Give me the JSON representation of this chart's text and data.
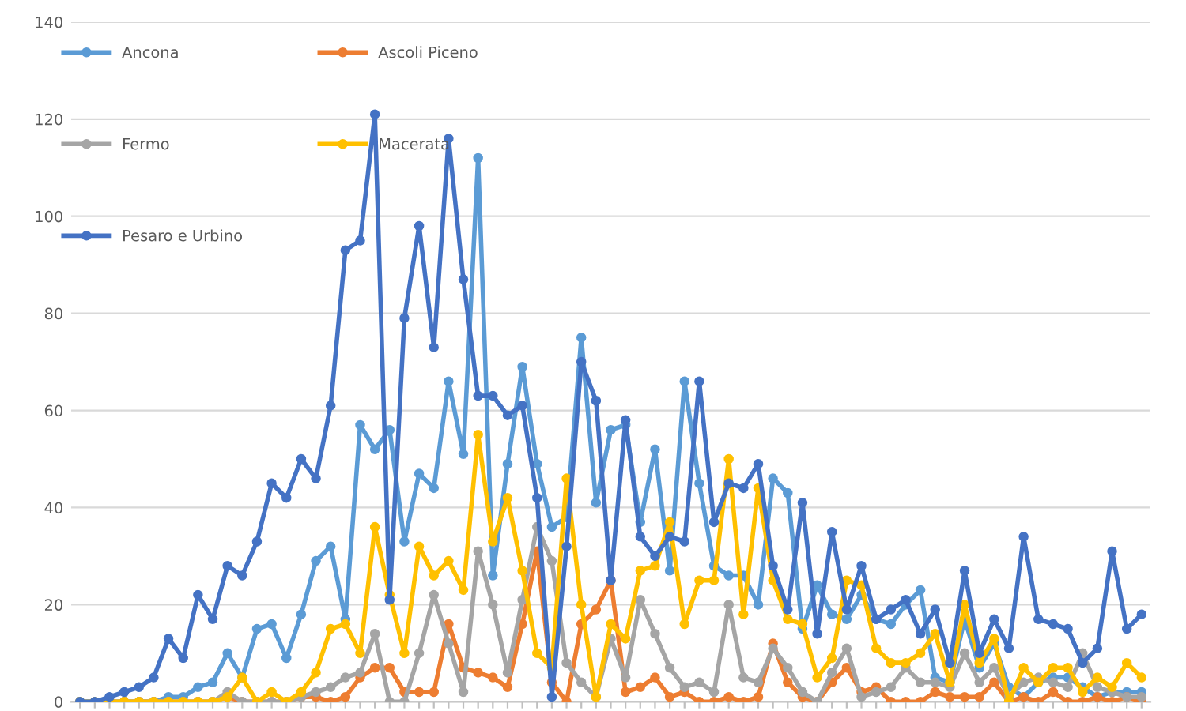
{
  "chart_data": {
    "type": "line",
    "categories": [
      null,
      null,
      null,
      null,
      null,
      null,
      null,
      null,
      null,
      null,
      null,
      null,
      null,
      null,
      null,
      null,
      null,
      null,
      null,
      null,
      null,
      null,
      null,
      null,
      null,
      null,
      null,
      null,
      null,
      null,
      null,
      null,
      null,
      null,
      null,
      null,
      null,
      null,
      null,
      null,
      null,
      null,
      null,
      null,
      null,
      null,
      null,
      null,
      null,
      null,
      null,
      null,
      null,
      null,
      null,
      null,
      null,
      null,
      null,
      null,
      null,
      null,
      null,
      null,
      null,
      null,
      null,
      null,
      null,
      null,
      null,
      null,
      null
    ],
    "series": [
      {
        "name": "Ancona",
        "color": "#5b9bd5",
        "values": [
          0,
          0,
          0,
          0,
          0,
          0,
          1,
          1,
          3,
          4,
          10,
          5,
          15,
          16,
          9,
          18,
          29,
          32,
          17,
          57,
          52,
          56,
          33,
          47,
          44,
          66,
          51,
          112,
          26,
          49,
          69,
          49,
          36,
          38,
          75,
          41,
          56,
          57,
          37,
          52,
          27,
          66,
          45,
          28,
          26,
          26,
          20,
          46,
          43,
          15,
          24,
          18,
          17,
          22,
          17,
          16,
          20,
          23,
          5,
          4,
          17,
          7,
          12,
          3,
          1,
          4,
          5,
          5,
          3,
          1,
          2,
          2,
          2
        ]
      },
      {
        "name": "Ascoli Piceno",
        "color": "#ed7d31",
        "values": [
          null,
          null,
          0,
          0,
          0,
          0,
          0,
          0,
          0,
          0,
          1,
          0,
          0,
          0,
          0,
          1,
          1,
          0,
          1,
          5,
          7,
          7,
          2,
          2,
          2,
          16,
          7,
          6,
          5,
          3,
          16,
          31,
          4,
          0,
          16,
          19,
          25,
          2,
          3,
          5,
          1,
          2,
          0,
          0,
          1,
          0,
          1,
          12,
          4,
          1,
          0,
          4,
          7,
          2,
          3,
          0,
          0,
          0,
          2,
          1,
          1,
          1,
          4,
          0,
          1,
          0,
          2,
          0,
          0,
          1,
          0,
          1,
          0
        ]
      },
      {
        "name": "Fermo",
        "color": "#a5a5a5",
        "values": [
          0,
          0,
          0,
          0,
          0,
          0,
          0,
          0,
          0,
          0,
          2,
          0,
          0,
          0,
          0,
          1,
          2,
          3,
          5,
          6,
          14,
          0,
          0,
          10,
          22,
          12,
          2,
          31,
          20,
          6,
          21,
          36,
          29,
          8,
          4,
          1,
          13,
          5,
          21,
          14,
          7,
          3,
          4,
          2,
          20,
          5,
          4,
          11,
          7,
          2,
          0,
          6,
          11,
          1,
          2,
          3,
          7,
          4,
          4,
          3,
          10,
          4,
          7,
          1,
          4,
          5,
          4,
          3,
          10,
          3,
          2,
          1,
          1
        ]
      },
      {
        "name": "Macerata",
        "color": "#ffc000",
        "values": [
          0,
          0,
          0,
          0,
          0,
          0,
          0,
          0,
          0,
          0,
          1,
          5,
          0,
          2,
          0,
          2,
          6,
          15,
          16,
          10,
          36,
          22,
          10,
          32,
          26,
          29,
          23,
          55,
          33,
          42,
          27,
          10,
          7,
          46,
          20,
          1,
          16,
          13,
          27,
          28,
          37,
          16,
          25,
          25,
          50,
          18,
          44,
          25,
          17,
          16,
          5,
          9,
          25,
          24,
          11,
          8,
          8,
          10,
          14,
          4,
          20,
          8,
          13,
          0,
          7,
          4,
          7,
          7,
          2,
          5,
          3,
          8,
          5
        ]
      },
      {
        "name": "Pesaro e Urbino",
        "color": "#4472c4",
        "values": [
          0,
          0,
          1,
          2,
          3,
          5,
          13,
          9,
          22,
          17,
          28,
          26,
          33,
          45,
          42,
          50,
          46,
          61,
          93,
          95,
          121,
          21,
          79,
          98,
          73,
          116,
          87,
          63,
          63,
          59,
          61,
          42,
          1,
          32,
          70,
          62,
          25,
          58,
          34,
          30,
          34,
          33,
          66,
          37,
          45,
          44,
          49,
          28,
          19,
          41,
          14,
          35,
          19,
          28,
          17,
          19,
          21,
          14,
          19,
          8,
          27,
          10,
          17,
          11,
          34,
          17,
          16,
          15,
          8,
          11,
          31,
          15,
          18
        ]
      }
    ],
    "ylim": [
      0,
      140
    ],
    "yticks": [
      0,
      20,
      40,
      60,
      80,
      100,
      120,
      140
    ],
    "grid": "y",
    "legend": "top left",
    "marker": "circle",
    "line_style": "solid",
    "tick_labels": "y"
  }
}
